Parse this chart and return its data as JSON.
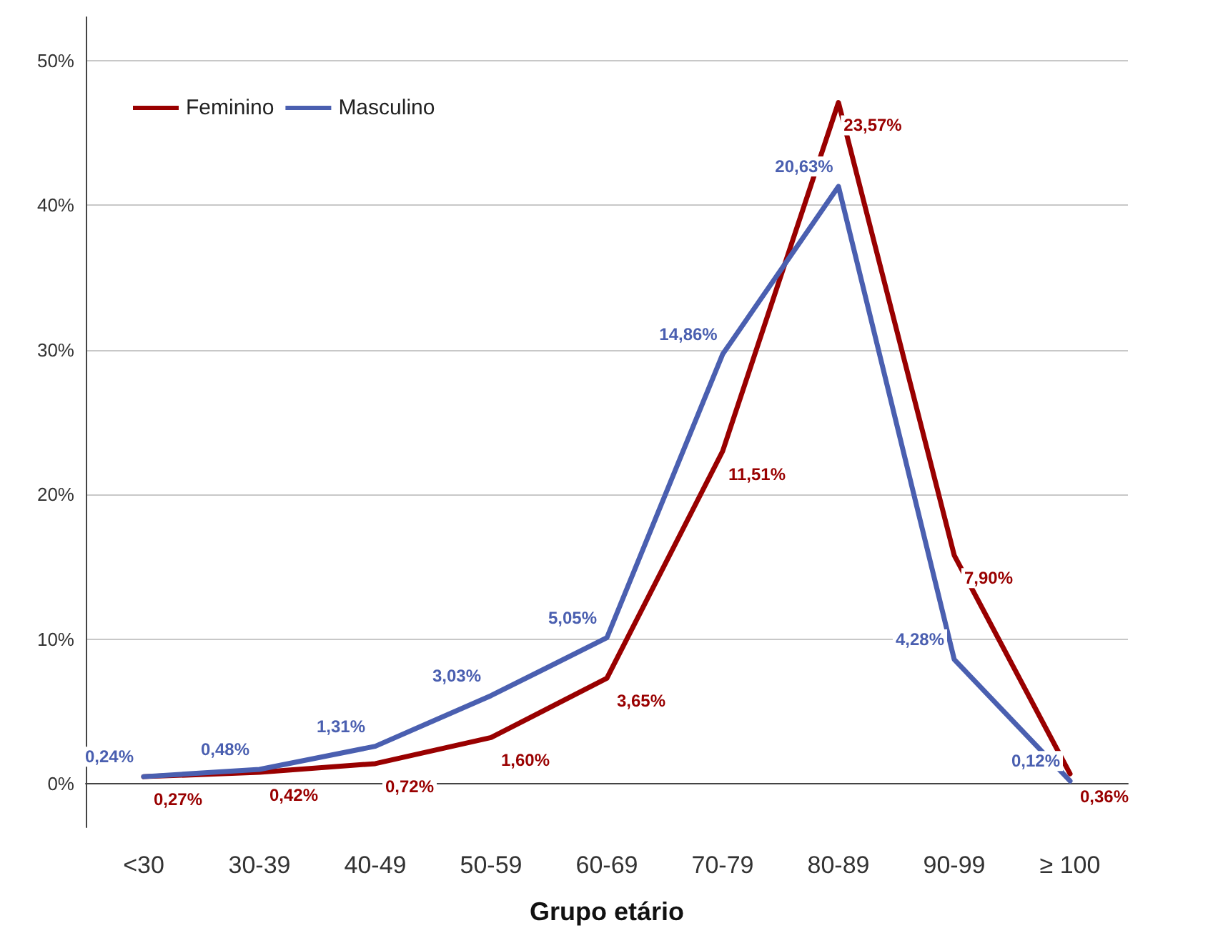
{
  "chart_data": {
    "type": "line",
    "xlabel": "Grupo etário",
    "categories": [
      "<30",
      "30-39",
      "40-49",
      "50-59",
      "60-69",
      "70-79",
      "80-89",
      "90-99",
      "≥ 100"
    ],
    "series": [
      {
        "name": "Feminino",
        "color": "#990000",
        "values": [
          0.5,
          0.8,
          1.4,
          3.2,
          7.3,
          23.0,
          47.1,
          15.8,
          0.7
        ]
      },
      {
        "name": "Masculino",
        "color": "#4a5fb0",
        "values": [
          0.5,
          1.0,
          2.6,
          6.1,
          10.1,
          29.7,
          41.3,
          8.6,
          0.2
        ]
      }
    ],
    "annotations": [
      {
        "text": "0,27%",
        "x": "<30",
        "y": 0.5
      },
      {
        "text": "0,42%",
        "x": "30-39",
        "y": 0.8
      },
      {
        "text": "0,72%",
        "x": "40-49",
        "y": 1.4
      },
      {
        "text": "1,60%",
        "x": "50-59",
        "y": 3.2
      },
      {
        "text": "3,65%",
        "x": "60-69",
        "y": 7.3
      },
      {
        "text": "11,51%",
        "x": "70-79",
        "y": 23.0
      },
      {
        "text": "23,57%",
        "x": "80-89",
        "y": 47.1
      },
      {
        "text": "7,90%",
        "x": "90-99",
        "y": 15.8
      },
      {
        "text": "0,36%",
        "x": "≥ 100",
        "y": 0.7
      },
      {
        "text": "0,24%",
        "x": "<30",
        "y": 0.5
      },
      {
        "text": "0,48%",
        "x": "30-39",
        "y": 1.0
      },
      {
        "text": "1,31%",
        "x": "40-49",
        "y": 2.6
      },
      {
        "text": "3,03%",
        "x": "50-59",
        "y": 6.1
      },
      {
        "text": "5,05%",
        "x": "60-69",
        "y": 10.1
      },
      {
        "text": "14,86%",
        "x": "70-79",
        "y": 29.7
      },
      {
        "text": "20,63%",
        "x": "80-89",
        "y": 41.3
      },
      {
        "text": "4,28%",
        "x": "90-99",
        "y": 8.6
      },
      {
        "text": "0,12%",
        "x": "≥ 100",
        "y": 0.2
      }
    ],
    "ylim": [
      -3,
      53
    ],
    "yticks": [
      {
        "value": 0,
        "label": "0%"
      },
      {
        "value": 10,
        "label": "10%"
      },
      {
        "value": 20,
        "label": "20%"
      },
      {
        "value": 30,
        "label": "30%"
      },
      {
        "value": 40,
        "label": "40%"
      },
      {
        "value": 50,
        "label": "50%"
      }
    ],
    "grid": "y",
    "legend": "top left",
    "marker": "none",
    "line_style": "solid"
  }
}
